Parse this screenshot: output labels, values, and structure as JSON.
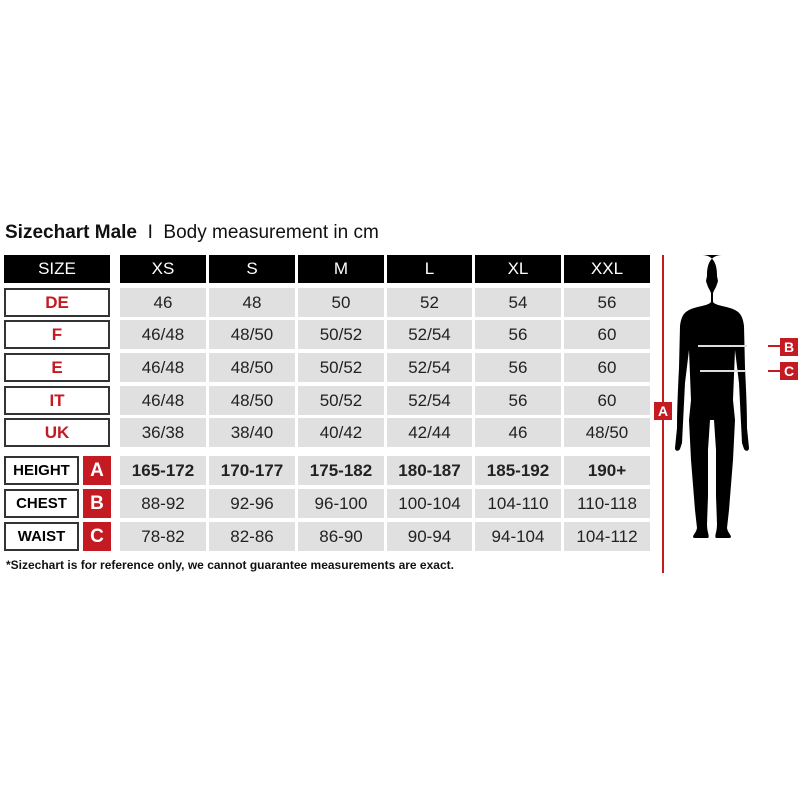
{
  "title": {
    "main": "Sizechart Male",
    "separator": "I",
    "sub": "Body measurement in cm"
  },
  "header": {
    "label": "SIZE",
    "sizes": [
      "XS",
      "S",
      "M",
      "L",
      "XL",
      "XXL"
    ]
  },
  "size_rows": [
    {
      "label": "DE",
      "values": [
        "46",
        "48",
        "50",
        "52",
        "54",
        "56"
      ]
    },
    {
      "label": "F",
      "values": [
        "46/48",
        "48/50",
        "50/52",
        "52/54",
        "56",
        "60"
      ]
    },
    {
      "label": "E",
      "values": [
        "46/48",
        "48/50",
        "50/52",
        "52/54",
        "56",
        "60"
      ]
    },
    {
      "label": "IT",
      "values": [
        "46/48",
        "48/50",
        "50/52",
        "52/54",
        "56",
        "60"
      ]
    },
    {
      "label": "UK",
      "values": [
        "36/38",
        "38/40",
        "40/42",
        "42/44",
        "46",
        "48/50"
      ]
    }
  ],
  "measure_rows": [
    {
      "label": "HEIGHT",
      "letter": "A",
      "values": [
        "165-172",
        "170-177",
        "175-182",
        "180-187",
        "185-192",
        "190+"
      ]
    },
    {
      "label": "CHEST",
      "letter": "B",
      "values": [
        "88-92",
        "92-96",
        "96-100",
        "100-104",
        "104-110",
        "110-118"
      ]
    },
    {
      "label": "WAIST",
      "letter": "C",
      "values": [
        "78-82",
        "82-86",
        "86-90",
        "90-94",
        "94-104",
        "104-112"
      ]
    }
  ],
  "footnote": "*Sizechart is for reference only, we cannot guarantee measurements are exact.",
  "figure": {
    "a": "A",
    "b": "B",
    "c": "C"
  },
  "colors": {
    "accent": "#c41a22",
    "header": "#000000",
    "cell": "#e0e0e0"
  }
}
